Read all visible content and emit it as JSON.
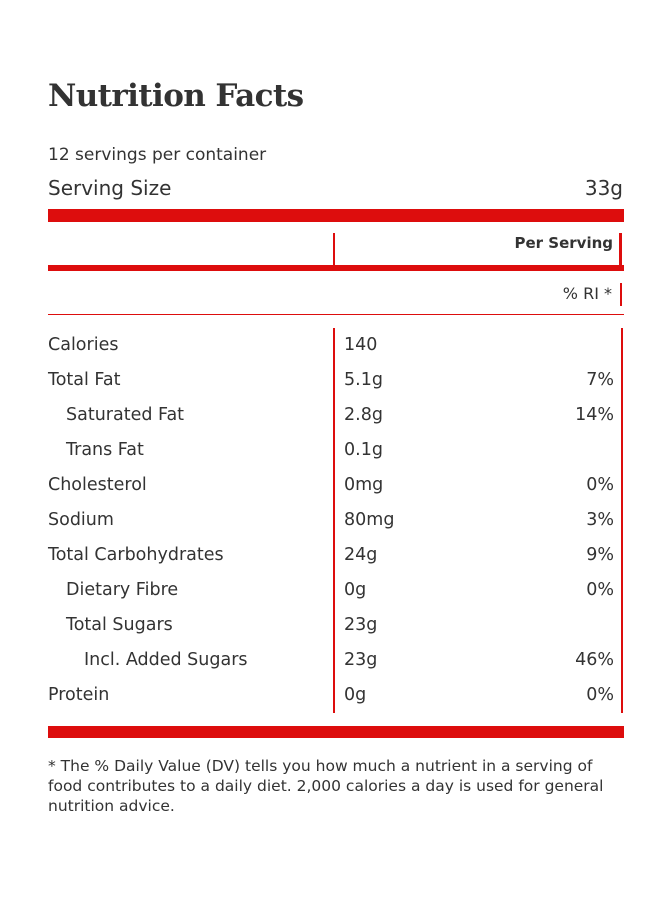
{
  "title": "Nutrition Facts",
  "servings_per_container": "12 servings per container",
  "serving_size": {
    "label": "Serving Size",
    "value": "33g"
  },
  "columns": {
    "per_serving": "Per Serving",
    "ri": "% RI *"
  },
  "rows": [
    {
      "name": "Calories",
      "amount": "140",
      "dv": "",
      "indent": 0
    },
    {
      "name": "Total Fat",
      "amount": "5.1g",
      "dv": "7%",
      "indent": 0
    },
    {
      "name": "Saturated Fat",
      "amount": "2.8g",
      "dv": "14%",
      "indent": 1
    },
    {
      "name": "Trans Fat",
      "amount": "0.1g",
      "dv": "",
      "indent": 1
    },
    {
      "name": "Cholesterol",
      "amount": "0mg",
      "dv": "0%",
      "indent": 0
    },
    {
      "name": "Sodium",
      "amount": "80mg",
      "dv": "3%",
      "indent": 0
    },
    {
      "name": "Total Carbohydrates",
      "amount": "24g",
      "dv": "9%",
      "indent": 0
    },
    {
      "name": "Dietary Fibre",
      "amount": "0g",
      "dv": "0%",
      "indent": 1
    },
    {
      "name": "Total Sugars",
      "amount": "23g",
      "dv": "",
      "indent": 1
    },
    {
      "name": "Incl. Added Sugars",
      "amount": "23g",
      "dv": "46%",
      "indent": 2
    },
    {
      "name": "Protein",
      "amount": "0g",
      "dv": "0%",
      "indent": 0
    }
  ],
  "footnote": "* The % Daily Value (DV) tells you how much a nutrient in a serving of food contributes to a daily diet. 2,000 calories a day is used for general nutrition advice.",
  "colors": {
    "accent": "#dd0d0d",
    "text": "#333333"
  }
}
